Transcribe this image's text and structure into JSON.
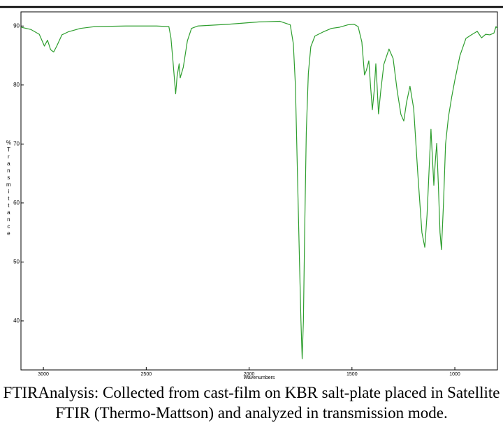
{
  "chart_data": {
    "type": "line",
    "y_label": "%Transmittance",
    "x_label": "Wavenumbers",
    "caption": "FTIRAnalysis: Collected from cast-film on KBR salt-plate placed in Satellite FTIR (Thermo-Mattson) and analyzed in transmission mode.",
    "x": [
      3109,
      3060,
      3020,
      2995,
      2980,
      2965,
      2950,
      2935,
      2910,
      2880,
      2850,
      2820,
      2750,
      2600,
      2450,
      2390,
      2380,
      2370,
      2357,
      2350,
      2340,
      2335,
      2320,
      2300,
      2280,
      2250,
      2100,
      1952,
      1850,
      1800,
      1785,
      1775,
      1765,
      1755,
      1748,
      1742,
      1736,
      1730,
      1722,
      1712,
      1700,
      1680,
      1640,
      1600,
      1560,
      1520,
      1490,
      1470,
      1452,
      1439,
      1430,
      1418,
      1410,
      1401,
      1392,
      1384,
      1378,
      1371,
      1360,
      1345,
      1320,
      1300,
      1280,
      1262,
      1248,
      1235,
      1218,
      1200,
      1180,
      1160,
      1146,
      1135,
      1122,
      1116,
      1108,
      1102,
      1095,
      1088,
      1080,
      1072,
      1065,
      1055,
      1045,
      1031,
      1015,
      1000,
      975,
      946,
      920,
      891,
      870,
      850,
      830,
      810,
      800,
      793
    ],
    "series": [
      {
        "color": "#2e9e2e",
        "values": [
          89.8,
          89.4,
          88.6,
          86.6,
          87.6,
          86.0,
          85.6,
          86.6,
          88.5,
          89.0,
          89.3,
          89.6,
          89.9,
          90.0,
          90.0,
          89.9,
          88.0,
          84.0,
          78.5,
          81.5,
          83.6,
          81.2,
          83.0,
          87.5,
          89.6,
          90.0,
          90.3,
          90.7,
          90.8,
          90.2,
          87.0,
          80.0,
          65.0,
          50.0,
          40.0,
          33.6,
          40.0,
          55.0,
          72.0,
          82.0,
          86.5,
          88.3,
          89.0,
          89.6,
          89.8,
          90.2,
          90.3,
          89.9,
          87.3,
          81.7,
          82.5,
          84.1,
          80.0,
          75.8,
          79.0,
          83.6,
          80.0,
          75.1,
          79.0,
          83.5,
          86.1,
          84.5,
          79.0,
          75.0,
          73.9,
          77.0,
          79.8,
          76.0,
          65.0,
          55.0,
          52.5,
          58.0,
          68.0,
          72.5,
          67.0,
          63.0,
          67.0,
          70.1,
          63.0,
          55.0,
          52.1,
          60.0,
          70.0,
          74.6,
          78.0,
          80.8,
          85.0,
          87.9,
          88.5,
          89.1,
          88.0,
          88.6,
          88.5,
          88.8,
          89.9,
          89.6
        ]
      }
    ],
    "xlim": [
      3109,
      793
    ],
    "ylim": [
      31.7,
      92.4
    ],
    "xticks": [
      3000,
      2500,
      2000,
      1500,
      1000
    ],
    "yticks": [
      40,
      50,
      60,
      70,
      80,
      90
    ]
  }
}
